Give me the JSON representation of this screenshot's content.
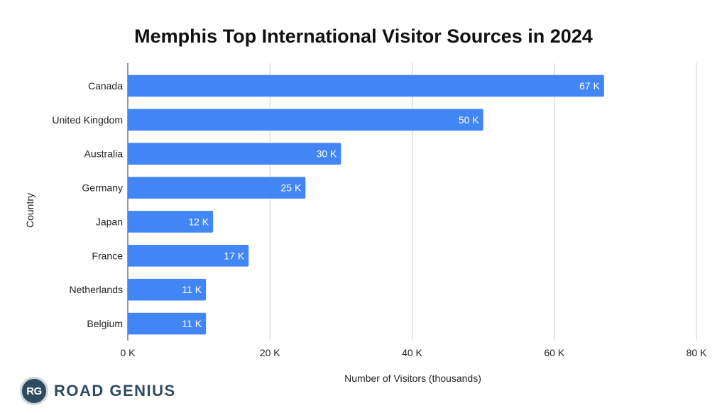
{
  "chart_data": {
    "type": "bar",
    "orientation": "horizontal",
    "title": "Memphis Top International Visitor Sources in 2024",
    "xlabel": "Number of Visitors (thousands)",
    "ylabel": "Country",
    "categories": [
      "Canada",
      "United Kingdom",
      "Australia",
      "Germany",
      "Japan",
      "France",
      "Netherlands",
      "Belgium"
    ],
    "values": [
      67,
      50,
      30,
      25,
      12,
      17,
      11,
      11
    ],
    "data_labels": [
      "67 K",
      "50 K",
      "30 K",
      "25 K",
      "12 K",
      "17 K",
      "11 K",
      "11 K"
    ],
    "xlim": [
      0,
      80
    ],
    "x_ticks": [
      0,
      20,
      40,
      60,
      80
    ],
    "x_tick_labels": [
      "0 K",
      "20 K",
      "40 K",
      "60 K",
      "80 K"
    ],
    "grid": true,
    "bar_color": "#4285f4"
  },
  "brand": {
    "badge": "RG",
    "name": "ROAD GENIUS",
    "color": "#2e4a5e"
  }
}
